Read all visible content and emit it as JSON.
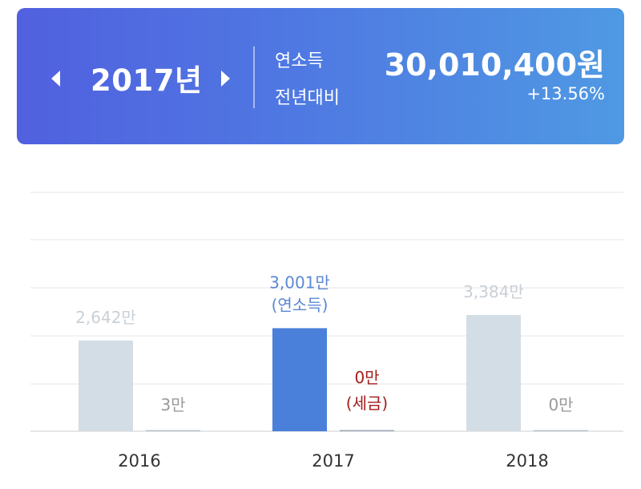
{
  "header": {
    "year_title": "2017년",
    "income_label": "연소득",
    "income_value": "30,010,400원",
    "yoy_label": "전년대비",
    "yoy_value": "+13.56%",
    "prev_icon": "caret-left-icon",
    "next_icon": "caret-right-icon"
  },
  "colors": {
    "header_gradient_start": "#5160df",
    "header_gradient_end": "#4f99e3",
    "income_bar_selected": "#4a80d9",
    "income_bar_other": "#d3dde5",
    "income_label_selected": "#5b88d4",
    "tax_label_selected": "#a31c1c",
    "label_other": "#c9d0d6",
    "tax_label_other": "#9a9a9a"
  },
  "chart_data": {
    "type": "bar",
    "categories": [
      "2016",
      "2017",
      "2018"
    ],
    "series": [
      {
        "name": "연소득",
        "values": [
          2642,
          3001,
          3384
        ]
      },
      {
        "name": "세금",
        "values": [
          3,
          0,
          0
        ]
      }
    ],
    "units": "만",
    "selected_category": "2017",
    "bar_labels": {
      "income": [
        "2,642만",
        "3,001만",
        "3,384만"
      ],
      "income_sub": [
        "",
        "(연소득)",
        ""
      ],
      "tax": [
        "3만",
        "0만",
        "0만"
      ],
      "tax_sub": [
        "",
        "(세금)",
        ""
      ]
    },
    "ylim": [
      0,
      7000
    ],
    "grid": true
  }
}
